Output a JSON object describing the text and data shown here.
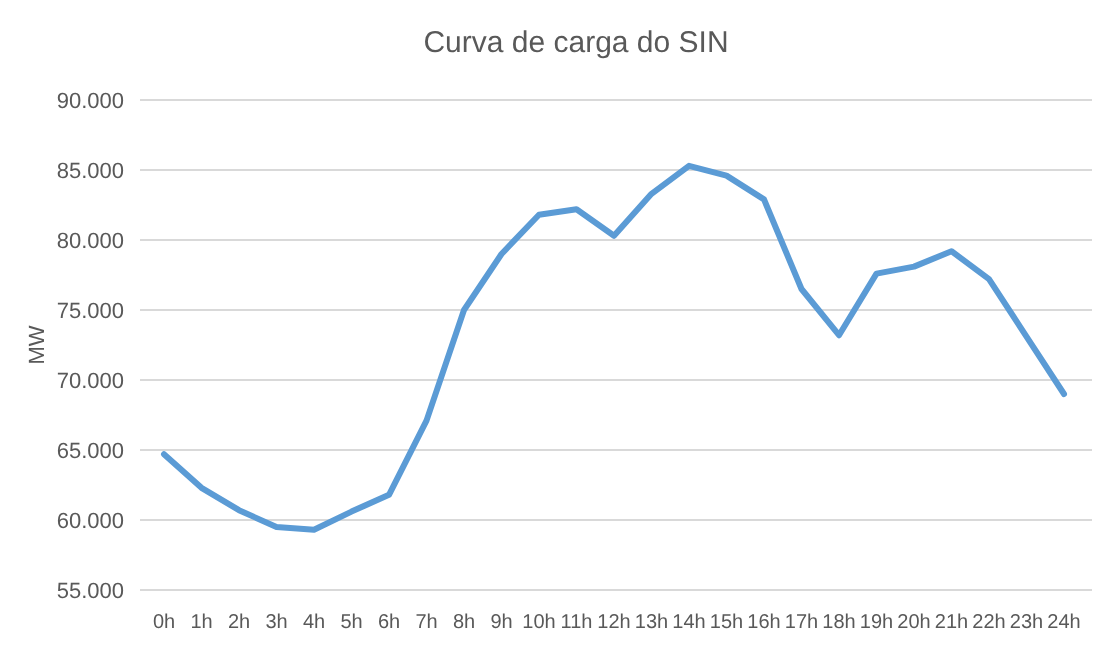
{
  "chart_data": {
    "type": "line",
    "title": "Curva de carga do SIN",
    "ylabel": "MW",
    "categories": [
      "0h",
      "1h",
      "2h",
      "3h",
      "4h",
      "5h",
      "6h",
      "7h",
      "8h",
      "9h",
      "10h",
      "11h",
      "12h",
      "13h",
      "14h",
      "15h",
      "16h",
      "17h",
      "18h",
      "19h",
      "20h",
      "21h",
      "22h",
      "23h",
      "24h"
    ],
    "series": [
      {
        "color": "#5b9bd5",
        "values": [
          64700,
          62300,
          60700,
          59500,
          59300,
          60600,
          61800,
          67100,
          75000,
          79000,
          81800,
          82200,
          80300,
          83300,
          85300,
          84600,
          82900,
          76500,
          73200,
          77600,
          78100,
          79200,
          77200,
          73100,
          69000
        ]
      }
    ],
    "ylim": [
      55000,
      90000
    ],
    "yticks": [
      {
        "value": 55000,
        "label": "55.000"
      },
      {
        "value": 60000,
        "label": "60.000"
      },
      {
        "value": 65000,
        "label": "65.000"
      },
      {
        "value": 70000,
        "label": "70.000"
      },
      {
        "value": 75000,
        "label": "75.000"
      },
      {
        "value": 80000,
        "label": "80.000"
      },
      {
        "value": 85000,
        "label": "85.000"
      },
      {
        "value": 90000,
        "label": "90.000"
      }
    ],
    "grid": "y",
    "marker": "none",
    "line_style": "solid"
  }
}
